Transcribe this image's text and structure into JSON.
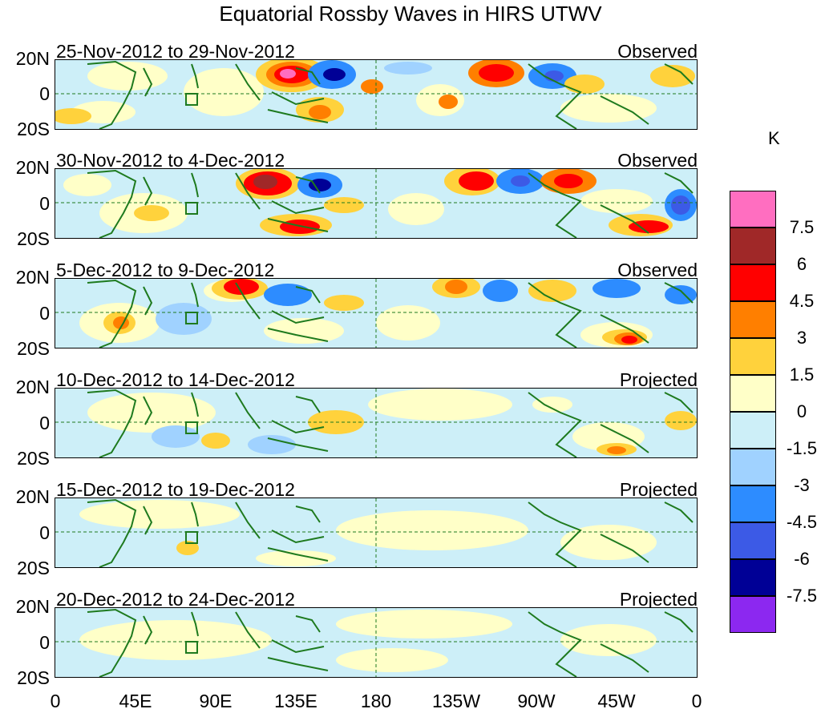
{
  "title": "Equatorial Rossby Waves in HIRS UTWV",
  "y_labels": [
    "20N",
    "0",
    "20S"
  ],
  "x_labels": [
    "0",
    "45E",
    "90E",
    "135E",
    "180",
    "135W",
    "90W",
    "45W",
    "0"
  ],
  "panels": [
    {
      "date": "25-Nov-2012 to 29-Nov-2012",
      "status": "Observed"
    },
    {
      "date": "30-Nov-2012 to 4-Dec-2012",
      "status": "Observed"
    },
    {
      "date": "5-Dec-2012 to 9-Dec-2012",
      "status": "Observed"
    },
    {
      "date": "10-Dec-2012 to 14-Dec-2012",
      "status": "Projected"
    },
    {
      "date": "15-Dec-2012 to 19-Dec-2012",
      "status": "Projected"
    },
    {
      "date": "20-Dec-2012 to 24-Dec-2012",
      "status": "Projected"
    }
  ],
  "colorbar": {
    "unit": "K",
    "labels": [
      "7.5",
      "6",
      "4.5",
      "3",
      "1.5",
      "0",
      "-1.5",
      "-3",
      "-4.5",
      "-6",
      "-7.5"
    ],
    "colors": [
      "#ff6ec0",
      "#a02828",
      "#ff0000",
      "#ff7f00",
      "#ffd23c",
      "#ffffc8",
      "#cdeff8",
      "#a0d2ff",
      "#2d8cff",
      "#3c5ae6",
      "#000096",
      "#8c28f0"
    ]
  },
  "colors": {
    "coast": "#1e7a1e",
    "equator": "#1e7a1e"
  }
}
